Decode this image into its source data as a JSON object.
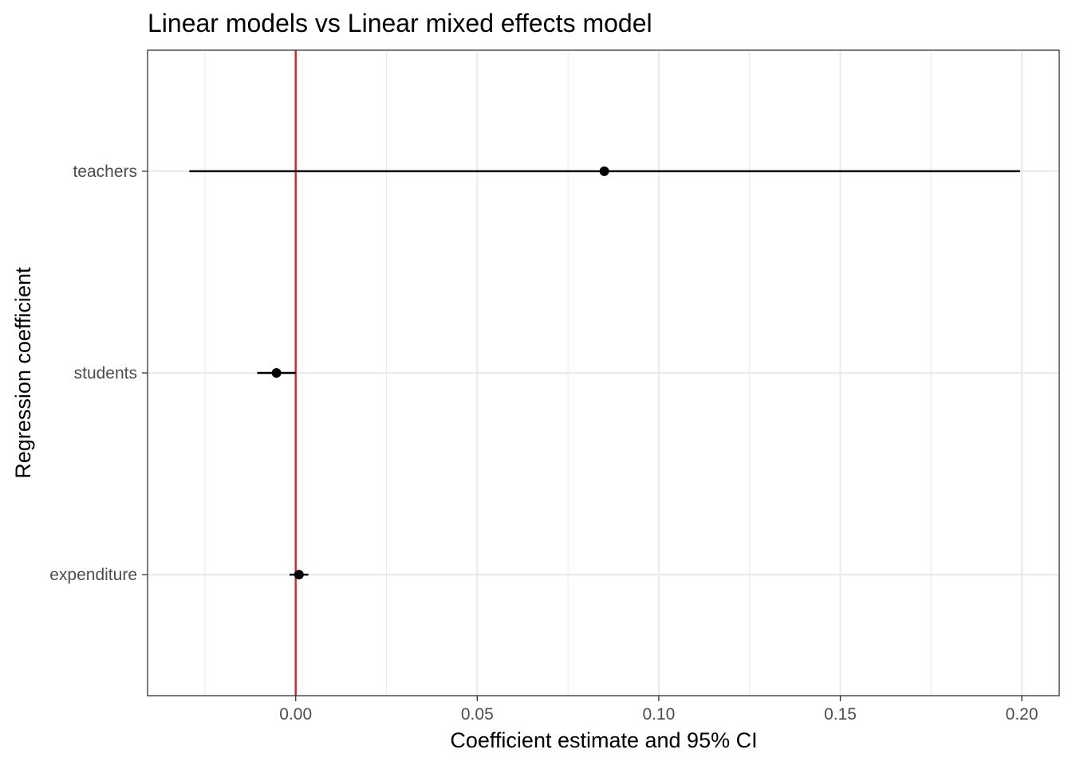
{
  "chart_data": {
    "type": "forest",
    "title": "Linear models vs Linear mixed effects model",
    "xlabel": "Coefficient estimate and 95% CI",
    "ylabel": "Regression coefficient",
    "xlim": [
      -0.0408,
      0.2103
    ],
    "x_ticks": [
      0.0,
      0.05,
      0.1,
      0.15,
      0.2
    ],
    "x_tick_labels": [
      "0.00",
      "0.05",
      "0.10",
      "0.15",
      "0.20"
    ],
    "categories": [
      "teachers",
      "students",
      "expenditure"
    ],
    "estimates": [
      0.085,
      -0.0053,
      0.0009
    ],
    "ci_lower": [
      -0.0293,
      -0.0106,
      -0.0017
    ],
    "ci_upper": [
      0.1995,
      0.0,
      0.0035
    ],
    "reference_line": 0,
    "colors": {
      "reference_line": "#e41a1c",
      "points": "#000000",
      "grid": "#ebebeb",
      "panel_border": "#333333"
    },
    "grid": true
  }
}
